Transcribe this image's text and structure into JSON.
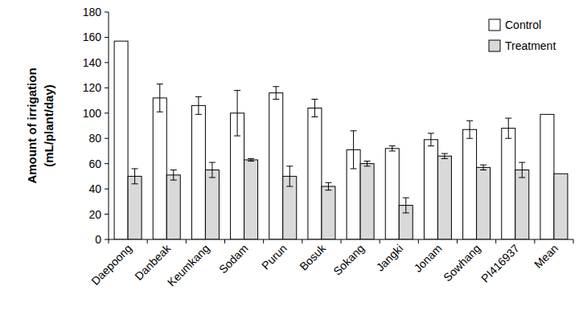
{
  "chart_data": {
    "type": "bar",
    "y_label": [
      "Amount of irrigation",
      "(mL/plant/day)"
    ],
    "categories": [
      "Daepoong",
      "Danbeak",
      "Keumkang",
      "Sodam",
      "Purun",
      "Bosuk",
      "Sokang",
      "Jangki",
      "Jonam",
      "Sowhang",
      "PI416937",
      "Mean"
    ],
    "series": [
      {
        "name": "Control",
        "color": "#ffffff",
        "values": [
          157,
          112,
          106,
          100,
          116,
          104,
          71,
          72,
          79,
          87,
          88,
          99
        ],
        "errors": [
          null,
          11,
          7,
          18,
          5,
          7,
          15,
          2,
          5,
          7,
          8,
          null
        ]
      },
      {
        "name": "Treatment",
        "color": "#d9d9d9",
        "values": [
          50,
          51,
          55,
          63,
          50,
          42,
          60,
          27,
          66,
          57,
          55,
          52
        ],
        "errors": [
          6,
          4,
          6,
          1,
          8,
          3,
          2,
          6,
          2,
          2,
          6,
          null
        ]
      }
    ],
    "ylim": [
      0,
      180
    ],
    "yticks": [
      0,
      20,
      40,
      60,
      80,
      100,
      120,
      140,
      160,
      180
    ],
    "grid": false,
    "legend": "top-right"
  }
}
